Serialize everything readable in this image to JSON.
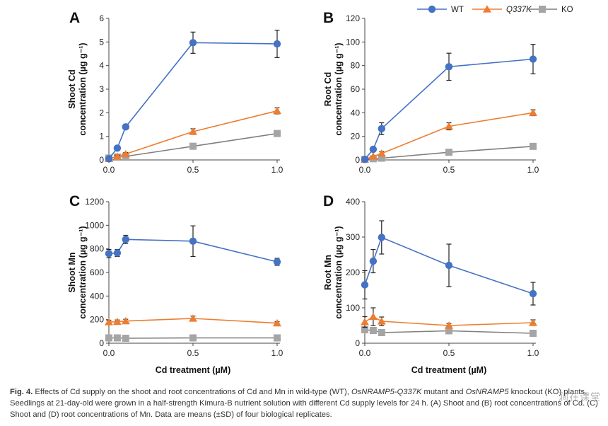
{
  "chart_data": [
    {
      "type": "line",
      "panel": "A",
      "ylabel_line1": "Shoot Cd",
      "ylabel_line2": "concentration (µg g⁻¹)",
      "xlabel": "",
      "ylim": [
        0,
        6
      ],
      "yticks": [
        0,
        1,
        2,
        3,
        4,
        5,
        6
      ],
      "ytick_labels": [
        "0",
        "1",
        "2",
        "3",
        "4",
        "5",
        "6"
      ],
      "xlim": [
        0,
        1.0
      ],
      "xticks": [
        0,
        0.5,
        1.0
      ],
      "xtick_labels": [
        "0.0",
        "0.5",
        "1.0"
      ],
      "x": [
        0,
        0.05,
        0.1,
        0.5,
        1.0
      ],
      "series": [
        {
          "name": "WT",
          "values": [
            0.05,
            0.5,
            1.4,
            4.97,
            4.92
          ],
          "sd": [
            0.05,
            0.08,
            0.1,
            0.45,
            0.58
          ]
        },
        {
          "name": "Q337K",
          "values": [
            0.05,
            0.15,
            0.25,
            1.2,
            2.08
          ],
          "sd": [
            0.03,
            0.05,
            0.06,
            0.12,
            0.13
          ]
        },
        {
          "name": "KO",
          "values": [
            0.08,
            0.12,
            0.15,
            0.58,
            1.12
          ],
          "sd": [
            0.03,
            0.03,
            0.04,
            0.06,
            0.06
          ]
        }
      ]
    },
    {
      "type": "line",
      "panel": "B",
      "ylabel_line1": "Root Cd",
      "ylabel_line2": "concentration (µg g⁻¹)",
      "xlabel": "",
      "ylim": [
        0,
        120
      ],
      "yticks": [
        0,
        20,
        40,
        60,
        80,
        100,
        120
      ],
      "ytick_labels": [
        "0",
        "20",
        "40",
        "60",
        "80",
        "100",
        "120"
      ],
      "xlim": [
        0,
        1.0
      ],
      "xticks": [
        0,
        0.5,
        1.0
      ],
      "xtick_labels": [
        "0.0",
        "0.5",
        "1.0"
      ],
      "x": [
        0,
        0.05,
        0.1,
        0.5,
        1.0
      ],
      "series": [
        {
          "name": "WT",
          "values": [
            0.5,
            9,
            26.5,
            79,
            85.5
          ],
          "sd": [
            0.5,
            1.5,
            5,
            11.5,
            12.5
          ]
        },
        {
          "name": "Q337K",
          "values": [
            0.5,
            3,
            5.5,
            28.5,
            40
          ],
          "sd": [
            0.3,
            0.8,
            1.5,
            3,
            2.5
          ]
        },
        {
          "name": "KO",
          "values": [
            0.5,
            1,
            1.5,
            6.5,
            11.5
          ],
          "sd": [
            0.2,
            0.3,
            0.4,
            1.2,
            1.5
          ]
        }
      ]
    },
    {
      "type": "line",
      "panel": "C",
      "ylabel_line1": "Shoot Mn",
      "ylabel_line2": "concentration (µg g⁻¹)",
      "xlabel": "Cd treatment (µM)",
      "ylim": [
        0,
        1200
      ],
      "yticks": [
        0,
        200,
        400,
        600,
        800,
        1000,
        1200
      ],
      "ytick_labels": [
        "0",
        "200",
        "400",
        "600",
        "800",
        "1000",
        "1200"
      ],
      "xlim": [
        0,
        1.0
      ],
      "xticks": [
        0,
        0.5,
        1.0
      ],
      "xtick_labels": [
        "0.0",
        "0.5",
        "1.0"
      ],
      "x": [
        0,
        0.05,
        0.1,
        0.5,
        1.0
      ],
      "series": [
        {
          "name": "WT",
          "values": [
            760,
            765,
            880,
            865,
            690
          ],
          "sd": [
            35,
            30,
            35,
            130,
            30
          ]
        },
        {
          "name": "Q337K",
          "values": [
            180,
            182,
            188,
            210,
            170
          ],
          "sd": [
            15,
            15,
            15,
            20,
            12
          ]
        },
        {
          "name": "KO",
          "values": [
            45,
            45,
            42,
            45,
            45
          ],
          "sd": [
            8,
            8,
            8,
            8,
            8
          ]
        }
      ]
    },
    {
      "type": "line",
      "panel": "D",
      "ylabel_line1": "Root Mn",
      "ylabel_line2": "concentration (µg g⁻¹)",
      "xlabel": "Cd treatment (µM)",
      "ylim": [
        0,
        400
      ],
      "yticks": [
        0,
        100,
        200,
        300,
        400
      ],
      "ytick_labels": [
        "0",
        "100",
        "200",
        "300",
        "400"
      ],
      "xlim": [
        0,
        1.0
      ],
      "xticks": [
        0,
        0.5,
        1.0
      ],
      "xtick_labels": [
        "0.0",
        "0.5",
        "1.0"
      ],
      "x": [
        0,
        0.05,
        0.1,
        0.5,
        1.0
      ],
      "series": [
        {
          "name": "WT",
          "values": [
            165,
            232,
            299,
            220,
            140
          ],
          "sd": [
            40,
            33,
            47,
            60,
            32
          ]
        },
        {
          "name": "Q337K",
          "values": [
            60,
            75,
            62,
            50,
            58
          ],
          "sd": [
            15,
            25,
            12,
            6,
            8
          ]
        },
        {
          "name": "KO",
          "values": [
            38,
            36,
            30,
            35,
            28
          ],
          "sd": [
            5,
            5,
            4,
            5,
            4
          ]
        }
      ]
    }
  ],
  "legend": {
    "placement": "top-right",
    "items": [
      {
        "name": "WT",
        "italic": false
      },
      {
        "name": "Q337K",
        "italic": true
      },
      {
        "name": "KO",
        "italic": false
      }
    ]
  },
  "colors": {
    "WT": "#4472C4",
    "Q337K": "#ED7D31",
    "KO": "#A5A5A5",
    "WT_line": "#4472C4",
    "Q337K_line": "#ED7D31",
    "KO_line": "#7F7F7F",
    "errorbar": "#222222",
    "axis": "#444444"
  },
  "caption": {
    "label": "Fig. 4.",
    "text_part1": " Effects of Cd supply on the shoot and root concentrations of Cd and Mn in wild-type (WT), ",
    "italic1": "OsNRAMP5-Q337K",
    "text_part2": " mutant and ",
    "italic2": "OsNRAMP5",
    "text_part3": " knockout (KO) plants. Seedlings at 21-day-old were grown in a half-strength Kimura-B nutrient solution with different Cd supply levels for 24 h. (A) Shoot and (B) root concentrations of Cd. (C) Shoot and (D) root concentrations of Mn. Data are means (±SD) of four biological replicates."
  },
  "watermark": "涧在课堂"
}
